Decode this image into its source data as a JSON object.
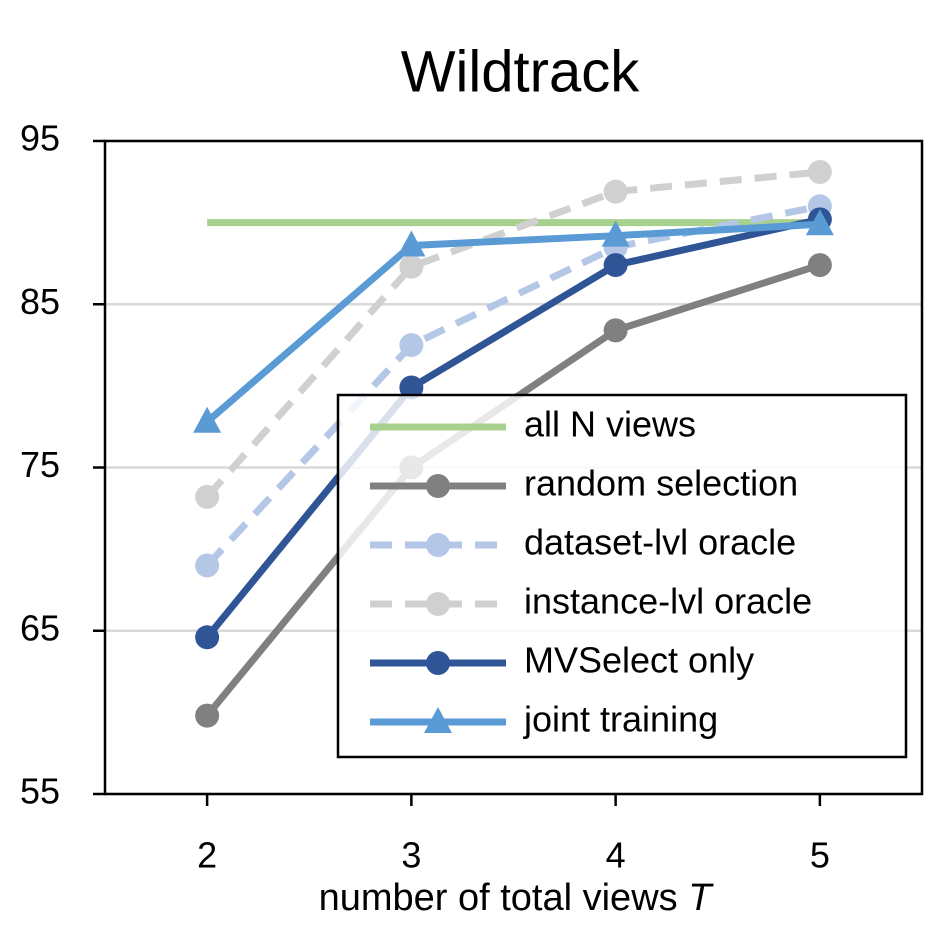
{
  "chart_data": {
    "type": "line",
    "title": "Wildtrack",
    "x_label": "number of total views",
    "x_label_var": "T",
    "x": [
      2,
      3,
      4,
      5
    ],
    "xlim": [
      1.5,
      5.5
    ],
    "xticks": [
      2,
      3,
      4,
      5
    ],
    "ylim": [
      55,
      95
    ],
    "yticks": [
      55,
      65,
      75,
      85,
      95
    ],
    "grid": true,
    "legend": "lower right",
    "series": [
      {
        "name": "all N views",
        "color": "#a9d18e",
        "dashed": false,
        "marker": null,
        "values": [
          90,
          90,
          90,
          90
        ]
      },
      {
        "name": "random selection",
        "color": "#808080",
        "dashed": false,
        "marker": "circle",
        "values": [
          59.8,
          75.0,
          83.4,
          87.4
        ]
      },
      {
        "name": "dataset-lvl oracle",
        "color": "#b4c7e7",
        "dashed": true,
        "marker": "circle",
        "values": [
          69.0,
          82.5,
          88.5,
          91.0
        ]
      },
      {
        "name": "instance-lvl oracle",
        "color": "#d0d0d0",
        "dashed": true,
        "marker": "circle",
        "values": [
          73.2,
          87.3,
          91.9,
          93.1
        ]
      },
      {
        "name": "MVSelect only",
        "color": "#2f5597",
        "dashed": false,
        "marker": "circle",
        "values": [
          64.6,
          79.9,
          87.4,
          90.2
        ]
      },
      {
        "name": "joint training",
        "color": "#5b9bd5",
        "dashed": false,
        "marker": "triangle",
        "values": [
          77.8,
          88.6,
          89.2,
          89.9
        ]
      }
    ]
  }
}
